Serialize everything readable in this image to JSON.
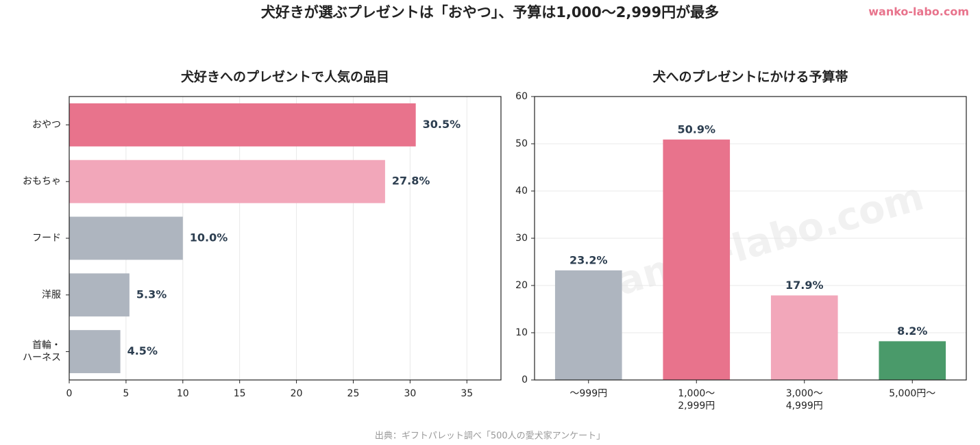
{
  "title": "犬好きが選ぶプレゼントは「おやつ」、予算は1,000〜2,999円が最多",
  "brand": "wanko-labo.com",
  "watermark": "wanko-labo.com",
  "source": "出典：ギフトパレット調べ「500人の愛犬家アンケート」",
  "chart_data": [
    {
      "type": "bar",
      "orientation": "horizontal",
      "title": "犬好きへのプレゼントで人気の品目",
      "categories": [
        "おやつ",
        "おもちゃ",
        "フード",
        "洋服",
        "首輪・\nハーネス"
      ],
      "values": [
        30.5,
        27.8,
        10.0,
        5.3,
        4.5
      ],
      "value_labels": [
        "30.5%",
        "27.8%",
        "10.0%",
        "5.3%",
        "4.5%"
      ],
      "colors": [
        "#e8738c",
        "#f2a7ba",
        "#aeb5bf",
        "#aeb5bf",
        "#aeb5bf"
      ],
      "xlim": [
        0,
        38
      ],
      "xticks": [
        0,
        5,
        10,
        15,
        20,
        25,
        30,
        35
      ],
      "grid": true
    },
    {
      "type": "bar",
      "orientation": "vertical",
      "title": "犬へのプレゼントにかける予算帯",
      "categories": [
        "〜999円",
        "1,000〜\n2,999円",
        "3,000〜\n4,999円",
        "5,000円〜"
      ],
      "values": [
        23.2,
        50.9,
        17.9,
        8.2
      ],
      "value_labels": [
        "23.2%",
        "50.9%",
        "17.9%",
        "8.2%"
      ],
      "colors": [
        "#aeb5bf",
        "#e8738c",
        "#f2a7ba",
        "#4a9a6a"
      ],
      "ylim": [
        0,
        60
      ],
      "yticks": [
        0,
        10,
        20,
        30,
        40,
        50,
        60
      ],
      "grid": true
    }
  ]
}
